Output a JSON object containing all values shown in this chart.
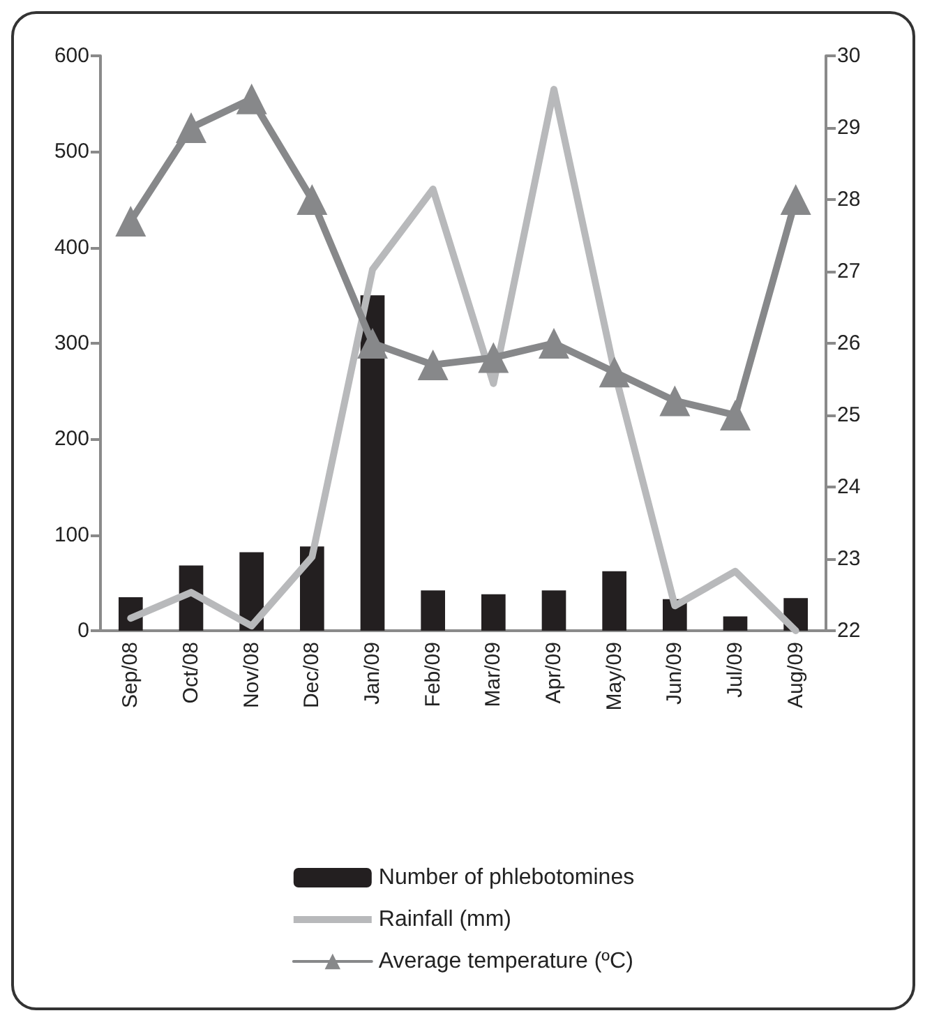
{
  "chart_data": {
    "type": "bar",
    "categories": [
      "Sep/08",
      "Oct/08",
      "Nov/08",
      "Dec/08",
      "Jan/09",
      "Feb/09",
      "Mar/09",
      "Apr/09",
      "May/09",
      "Jun/09",
      "Jul/09",
      "Aug/09"
    ],
    "series": [
      {
        "name": "Number of phlebotomines",
        "color": "#231f20",
        "values": [
          35,
          68,
          82,
          88,
          350,
          42,
          38,
          42,
          62,
          33,
          15,
          34
        ]
      },
      {
        "name": "Rainfall (mm)",
        "type": "line",
        "color": "#b8b9bb",
        "marker": "none",
        "values": [
          13,
          40,
          5,
          77,
          377,
          461,
          258,
          565,
          271,
          26,
          62,
          0
        ]
      },
      {
        "name": "Average temperature (ºC)",
        "type": "line",
        "axis": "y2",
        "color": "#87888a",
        "marker": "triangle",
        "values": [
          27.7,
          29.0,
          29.4,
          28.0,
          26.0,
          25.7,
          25.8,
          26.0,
          25.6,
          25.2,
          25.0,
          28.0
        ]
      }
    ],
    "ylim": [
      0,
      600
    ],
    "yticks": [
      0,
      100,
      200,
      300,
      400,
      500,
      600
    ],
    "y2lim": [
      22,
      30
    ],
    "y2ticks": [
      22,
      23,
      24,
      25,
      26,
      27,
      28,
      29,
      30
    ],
    "grid": false,
    "legend": "bottom"
  }
}
